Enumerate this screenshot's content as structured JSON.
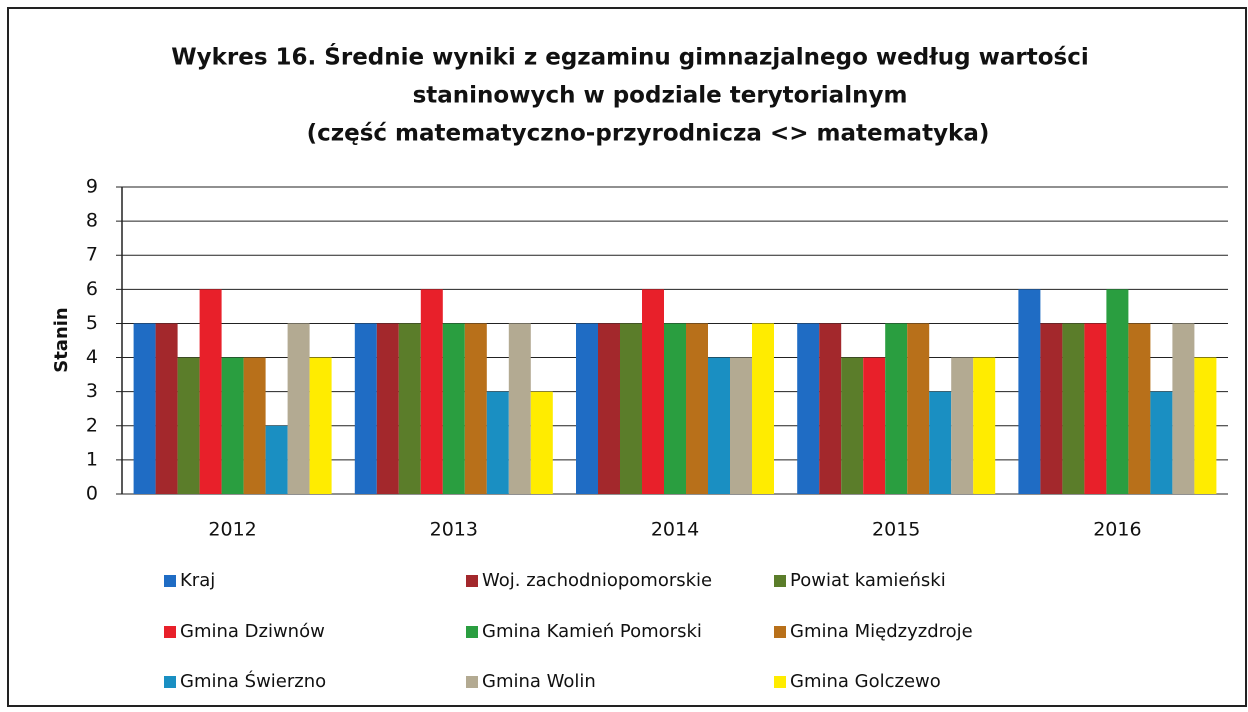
{
  "chart_data": {
    "type": "bar",
    "title": [
      "Wykres 16.  Średnie wyniki  z egzaminu gimnazjalnego według wartości",
      "staninowych w podziale terytorialnym",
      "(część matematyczno-przyrodnicza  <> matematyka)"
    ],
    "ylabel": "Stanin",
    "categories": [
      "2012",
      "2013",
      "2014",
      "2015",
      "2016"
    ],
    "series": [
      {
        "name": "Kraj",
        "color": "#1f6cc4",
        "values": [
          5,
          5,
          5,
          5,
          6
        ]
      },
      {
        "name": "Woj. zachodniopomorskie",
        "color": "#a3282c",
        "values": [
          5,
          5,
          5,
          5,
          5
        ]
      },
      {
        "name": "Powiat kamieński",
        "color": "#5b7d2a",
        "values": [
          4,
          5,
          5,
          4,
          5
        ]
      },
      {
        "name": "Gmina Dziwnów",
        "color": "#e8202a",
        "values": [
          6,
          6,
          6,
          4,
          5
        ]
      },
      {
        "name": "Gmina Kamień Pomorski",
        "color": "#2a9e40",
        "values": [
          4,
          5,
          5,
          5,
          6
        ]
      },
      {
        "name": "Gmina Międzyzdroje",
        "color": "#b8701a",
        "values": [
          4,
          5,
          5,
          5,
          5
        ]
      },
      {
        "name": "Gmina Świerzno",
        "color": "#1a8fc2",
        "values": [
          2,
          3,
          4,
          3,
          3
        ]
      },
      {
        "name": "Gmina Wolin",
        "color": "#b3aa92",
        "values": [
          5,
          5,
          4,
          4,
          5
        ]
      },
      {
        "name": "Gmina Golczewo",
        "color": "#ffec00",
        "values": [
          4,
          3,
          5,
          4,
          4
        ]
      }
    ],
    "ylim": [
      0,
      9
    ],
    "yticks": [
      0,
      1,
      2,
      3,
      4,
      5,
      6,
      7,
      8,
      9
    ],
    "grid": true
  }
}
